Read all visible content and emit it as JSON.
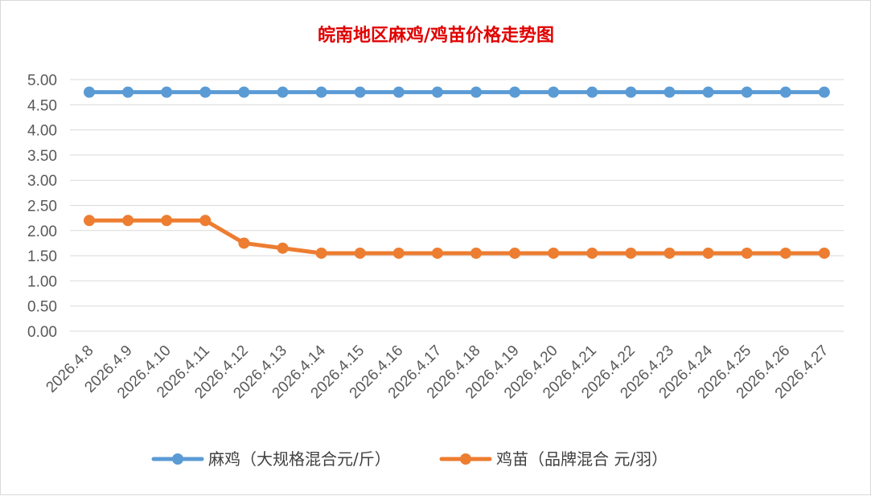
{
  "chart_data": {
    "type": "line",
    "title": "皖南地区麻鸡/鸡苗价格走势图",
    "title_color": "#e00000",
    "categories": [
      "2026.4.8",
      "2026.4.9",
      "2026.4.10",
      "2026.4.11",
      "2026.4.12",
      "2026.4.13",
      "2026.4.14",
      "2026.4.15",
      "2026.4.16",
      "2026.4.17",
      "2026.4.18",
      "2026.4.19",
      "2026.4.20",
      "2026.4.21",
      "2026.4.22",
      "2026.4.23",
      "2026.4.24",
      "2026.4.25",
      "2026.4.26",
      "2026.4.27"
    ],
    "series": [
      {
        "name": "麻鸡（大规格混合元/斤）",
        "color": "#5b9bd5",
        "values": [
          4.75,
          4.75,
          4.75,
          4.75,
          4.75,
          4.75,
          4.75,
          4.75,
          4.75,
          4.75,
          4.75,
          4.75,
          4.75,
          4.75,
          4.75,
          4.75,
          4.75,
          4.75,
          4.75,
          4.75
        ]
      },
      {
        "name": "鸡苗（品牌混合 元/羽）",
        "color": "#ed7d31",
        "values": [
          2.2,
          2.2,
          2.2,
          2.2,
          1.75,
          1.65,
          1.55,
          1.55,
          1.55,
          1.55,
          1.55,
          1.55,
          1.55,
          1.55,
          1.55,
          1.55,
          1.55,
          1.55,
          1.55,
          1.55
        ]
      }
    ],
    "y_ticks": [
      "0.00",
      "0.50",
      "1.00",
      "1.50",
      "2.00",
      "2.50",
      "3.00",
      "3.50",
      "4.00",
      "4.50",
      "5.00"
    ],
    "ylim": [
      0,
      5
    ],
    "xlabel": "",
    "ylabel": "",
    "grid": true,
    "legend_position": "bottom"
  }
}
